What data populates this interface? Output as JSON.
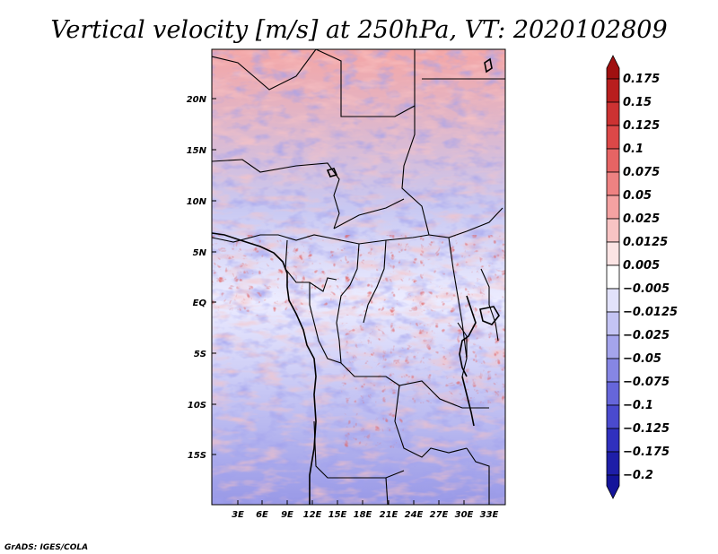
{
  "title": "Vertical velocity [m/s] at 250hPa, VT: 2020102809",
  "credit": "GrADS: IGES/COLA",
  "map": {
    "variable": "vertical velocity",
    "level": "250hPa",
    "valid_time": "2020102809",
    "units": "m/s",
    "lat_labels": [
      "20N",
      "15N",
      "10N",
      "5N",
      "EQ",
      "5S",
      "10S",
      "15S"
    ],
    "lon_labels": [
      "3E",
      "6E",
      "9E",
      "12E",
      "15E",
      "18E",
      "21E",
      "24E",
      "27E",
      "30E",
      "33E"
    ]
  },
  "colorbar": {
    "labels": [
      "0.175",
      "0.15",
      "0.125",
      "0.1",
      "0.075",
      "0.05",
      "0.025",
      "0.0125",
      "0.005",
      "−0.005",
      "−0.0125",
      "−0.025",
      "−0.05",
      "−0.075",
      "−0.1",
      "−0.125",
      "−0.175",
      "−0.2"
    ],
    "colors": [
      "#a01010",
      "#b81e1e",
      "#cc3232",
      "#dc4848",
      "#e66464",
      "#ee8282",
      "#f4a2a2",
      "#f8c4c4",
      "#fce4e4",
      "#ffffff",
      "#e2e2fb",
      "#c4c4f4",
      "#a4a4ec",
      "#8686e4",
      "#6666da",
      "#4a4ace",
      "#3030be",
      "#1e1ea8",
      "#14149a"
    ]
  }
}
